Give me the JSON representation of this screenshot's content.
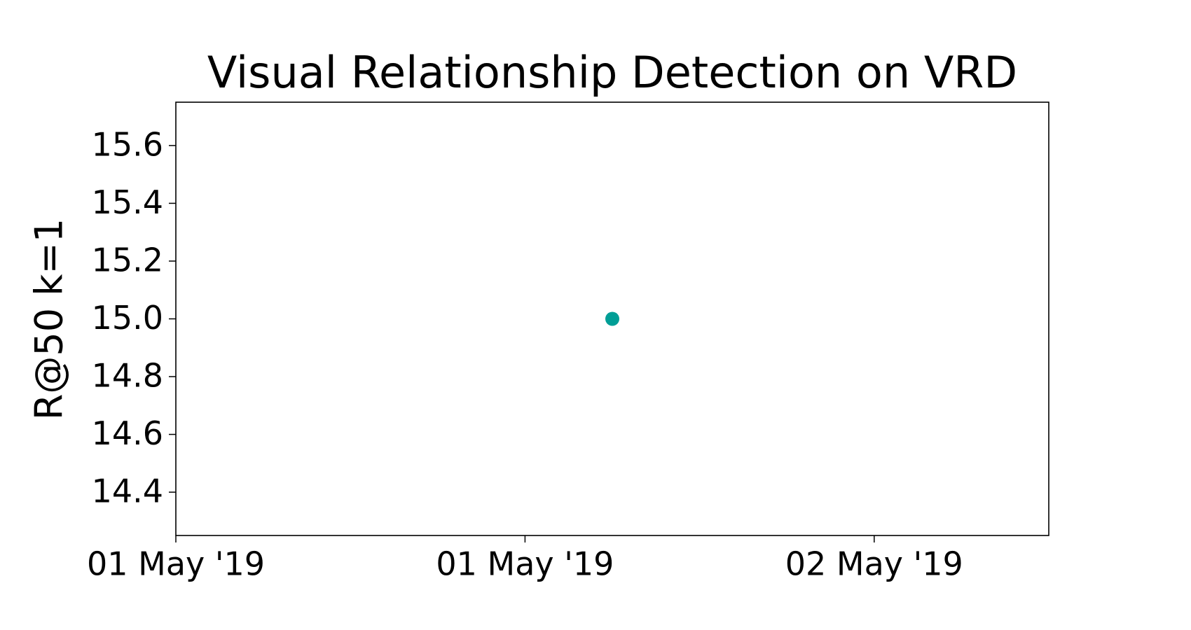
{
  "chart_data": {
    "type": "scatter",
    "title": "Visual Relationship Detection on VRD",
    "y_label": "R@50 k=1",
    "x": [
      "2019-05-01T15:00"
    ],
    "values": [
      15.0
    ],
    "color": "#009e96",
    "xlim": [
      "2019-05-01T00:00",
      "2019-05-02T06:00"
    ],
    "xticks": [
      {
        "value": "2019-05-01T00:00",
        "label": "01 May '19"
      },
      {
        "value": "2019-05-01T12:00",
        "label": "01 May '19"
      },
      {
        "value": "2019-05-02T00:00",
        "label": "02 May '19"
      }
    ],
    "ylim": [
      14.25,
      15.75
    ],
    "yticks": [
      14.4,
      14.6,
      14.8,
      {
        "value": 15,
        "label": "15.0"
      },
      15.2,
      15.4,
      15.6
    ]
  }
}
